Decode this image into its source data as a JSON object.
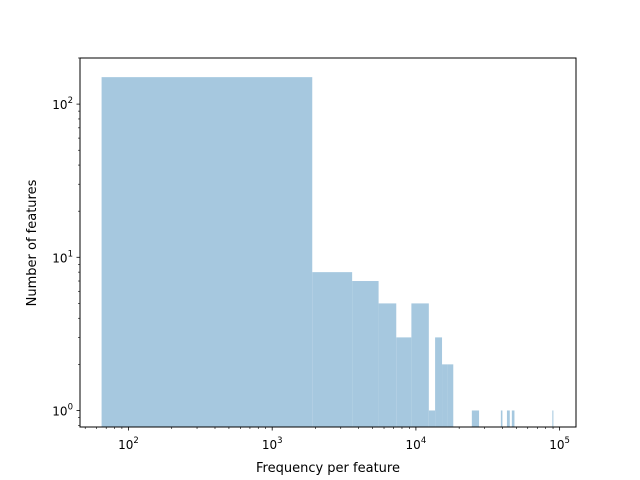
{
  "chart_data": {
    "type": "bar",
    "title": "",
    "xlabel": "Frequency per feature",
    "ylabel": "Number of features",
    "xscale": "log",
    "yscale": "log",
    "xlim": [
      46,
      130000
    ],
    "ylim": [
      0.78,
      200
    ],
    "grid": false,
    "bar_color": "#a6c8df",
    "x_ticks": [
      {
        "value": 100,
        "base": "10",
        "exp": "2"
      },
      {
        "value": 1000,
        "base": "10",
        "exp": "3"
      },
      {
        "value": 10000,
        "base": "10",
        "exp": "4"
      },
      {
        "value": 100000,
        "base": "10",
        "exp": "5"
      }
    ],
    "y_ticks": [
      {
        "value": 1,
        "base": "10",
        "exp": "0"
      },
      {
        "value": 10,
        "base": "10",
        "exp": "1"
      },
      {
        "value": 100,
        "base": "10",
        "exp": "2"
      }
    ],
    "bins": [
      {
        "x0": 65,
        "x1": 1900,
        "count": 150
      },
      {
        "x0": 1900,
        "x1": 3600,
        "count": 8
      },
      {
        "x0": 3600,
        "x1": 5500,
        "count": 7
      },
      {
        "x0": 5500,
        "x1": 7300,
        "count": 5
      },
      {
        "x0": 7300,
        "x1": 9300,
        "count": 3
      },
      {
        "x0": 9300,
        "x1": 12300,
        "count": 5
      },
      {
        "x0": 12300,
        "x1": 13600,
        "count": 1
      },
      {
        "x0": 13600,
        "x1": 15200,
        "count": 3
      },
      {
        "x0": 15200,
        "x1": 16700,
        "count": 2
      },
      {
        "x0": 16700,
        "x1": 18200,
        "count": 2
      },
      {
        "x0": 24500,
        "x1": 27500,
        "count": 1
      },
      {
        "x0": 39000,
        "x1": 40000,
        "count": 1
      },
      {
        "x0": 43000,
        "x1": 45000,
        "count": 1
      },
      {
        "x0": 46500,
        "x1": 48500,
        "count": 1
      },
      {
        "x0": 89000,
        "x1": 90500,
        "count": 1
      }
    ]
  }
}
